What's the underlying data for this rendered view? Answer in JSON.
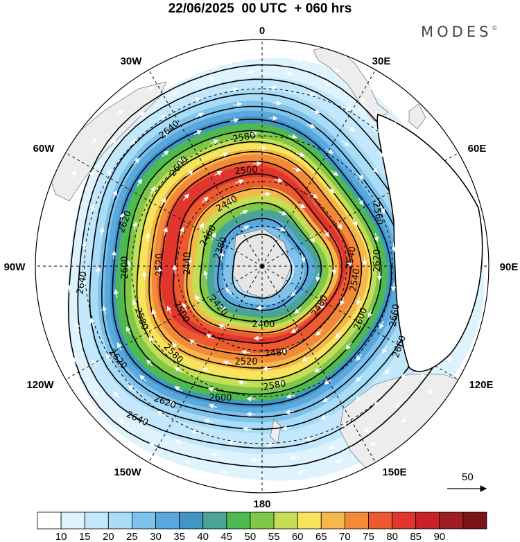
{
  "header": {
    "title": "22/06/2025  00 UTC  + 060 hrs",
    "brand": "MODES"
  },
  "map": {
    "projection": "polar-stereographic-south",
    "meridian_labels": [
      {
        "text": "0",
        "lon": 0
      },
      {
        "text": "30E",
        "lon": 30
      },
      {
        "text": "60E",
        "lon": 60
      },
      {
        "text": "90E",
        "lon": 90
      },
      {
        "text": "120E",
        "lon": 120
      },
      {
        "text": "150E",
        "lon": 150
      },
      {
        "text": "180",
        "lon": 180
      },
      {
        "text": "150W",
        "lon": -150
      },
      {
        "text": "120W",
        "lon": -120
      },
      {
        "text": "90W",
        "lon": -90
      },
      {
        "text": "60W",
        "lon": -60
      },
      {
        "text": "30W",
        "lon": -30
      }
    ],
    "contour_labels": [
      "2640",
      "2600",
      "2620",
      "2580",
      "2560",
      "2540",
      "2520",
      "2500",
      "2480",
      "2460",
      "2440",
      "2420",
      "2400",
      "2380",
      "2660"
    ],
    "vector_scale": {
      "value": "50"
    },
    "colors": {
      "land": "#eeeeee",
      "contour": "#000000",
      "vector": "#ffffff"
    }
  },
  "colorbar": {
    "ticks": [
      "10",
      "15",
      "20",
      "25",
      "30",
      "35",
      "40",
      "45",
      "50",
      "55",
      "60",
      "65",
      "70",
      "75",
      "80",
      "85",
      "90"
    ],
    "colors": [
      "#ffffff",
      "#dff3fd",
      "#c4e8fb",
      "#a9dcf6",
      "#7fc3ec",
      "#5aa8dd",
      "#4196c8",
      "#4aa596",
      "#4db94f",
      "#7fc84a",
      "#c6de55",
      "#f7e45c",
      "#f7b84b",
      "#f38a3a",
      "#ec5a30",
      "#e0362e",
      "#c82228",
      "#a01e22",
      "#7b1416"
    ]
  }
}
